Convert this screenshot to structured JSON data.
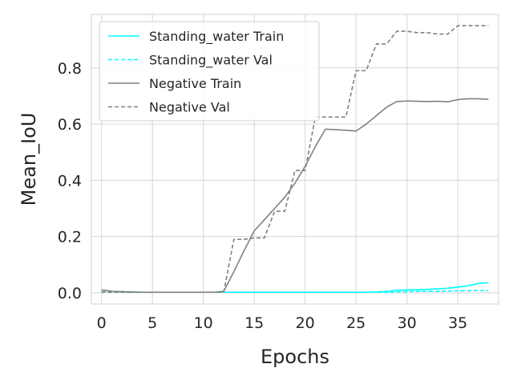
{
  "chart_data": {
    "type": "line",
    "title": "",
    "xlabel": "Epochs",
    "ylabel": "Mean_IoU",
    "xlim": [
      -1,
      39
    ],
    "ylim": [
      -0.04,
      0.99
    ],
    "xticks": [
      0,
      5,
      10,
      15,
      20,
      25,
      30,
      35
    ],
    "yticks": [
      0.0,
      0.2,
      0.4,
      0.6,
      0.8
    ],
    "ytick_labels": [
      "0.0",
      "0.2",
      "0.4",
      "0.6",
      "0.8"
    ],
    "grid": true,
    "legend_position": "top-left",
    "x": [
      0,
      1,
      2,
      3,
      4,
      5,
      6,
      7,
      8,
      9,
      10,
      11,
      12,
      13,
      14,
      15,
      16,
      17,
      18,
      19,
      20,
      21,
      22,
      23,
      24,
      25,
      26,
      27,
      28,
      29,
      30,
      31,
      32,
      33,
      34,
      35,
      36,
      37,
      38
    ],
    "series": [
      {
        "name": "Standing_water Train",
        "color": "#00ffff",
        "style": "solid",
        "values": [
          0.01,
          0.005,
          0.004,
          0.003,
          0.002,
          0.002,
          0.002,
          0.002,
          0.002,
          0.002,
          0.002,
          0.002,
          0.002,
          0.002,
          0.002,
          0.002,
          0.002,
          0.002,
          0.002,
          0.002,
          0.002,
          0.002,
          0.002,
          0.002,
          0.002,
          0.002,
          0.002,
          0.003,
          0.005,
          0.009,
          0.01,
          0.011,
          0.012,
          0.014,
          0.016,
          0.02,
          0.025,
          0.033,
          0.036
        ]
      },
      {
        "name": "Standing_water Val",
        "color": "#00ffff",
        "style": "dashed",
        "values": [
          0.002,
          0.002,
          0.002,
          0.002,
          0.002,
          0.002,
          0.002,
          0.002,
          0.002,
          0.002,
          0.002,
          0.002,
          0.002,
          0.002,
          0.002,
          0.002,
          0.002,
          0.002,
          0.002,
          0.002,
          0.002,
          0.002,
          0.002,
          0.002,
          0.002,
          0.002,
          0.002,
          0.002,
          0.002,
          0.003,
          0.004,
          0.005,
          0.005,
          0.005,
          0.006,
          0.007,
          0.007,
          0.008,
          0.008
        ]
      },
      {
        "name": "Negative Train",
        "color": "#808080",
        "style": "solid",
        "values": [
          0.01,
          0.005,
          0.004,
          0.003,
          0.002,
          0.002,
          0.002,
          0.002,
          0.002,
          0.002,
          0.002,
          0.002,
          0.005,
          0.075,
          0.15,
          0.22,
          0.26,
          0.3,
          0.34,
          0.39,
          0.45,
          0.52,
          0.582,
          0.58,
          0.578,
          0.575,
          0.6,
          0.63,
          0.66,
          0.68,
          0.682,
          0.681,
          0.68,
          0.681,
          0.679,
          0.687,
          0.69,
          0.69,
          0.688
        ]
      },
      {
        "name": "Negative Val",
        "color": "#808080",
        "style": "dashed",
        "values": [
          0.003,
          0.002,
          0.002,
          0.002,
          0.002,
          0.002,
          0.002,
          0.002,
          0.002,
          0.002,
          0.002,
          0.002,
          0.002,
          0.19,
          0.19,
          0.195,
          0.195,
          0.29,
          0.29,
          0.435,
          0.435,
          0.625,
          0.625,
          0.625,
          0.625,
          0.79,
          0.79,
          0.885,
          0.885,
          0.93,
          0.93,
          0.925,
          0.925,
          0.92,
          0.92,
          0.95,
          0.95,
          0.95,
          0.95
        ]
      }
    ]
  }
}
